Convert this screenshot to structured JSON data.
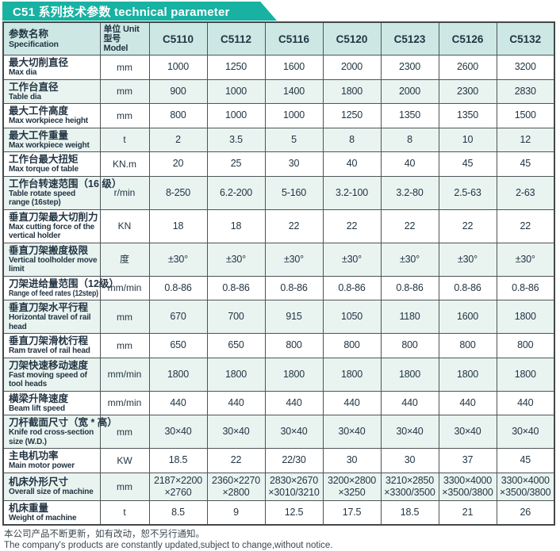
{
  "page": {
    "banner_title": "C51 系列技术参数 technical parameter",
    "footer_zh": "本公司产品不断更新，如有改动，恕不另行通知。",
    "footer_en": "The company's products are constantly updated,subject to change,without notice."
  },
  "colors": {
    "banner_teal": "#17b2a2",
    "header_row_bg": "#cde8e4",
    "stripe_row_bg": "#e9f4f1",
    "border": "#4f5456",
    "text": "#233543"
  },
  "table": {
    "header": {
      "spec_zh": "参数名称",
      "spec_en": "Specification",
      "unit_line1": "单位 Unit",
      "unit_line2": "型号 Model",
      "models": [
        "C5110",
        "C5112",
        "C5116",
        "C5120",
        "C5123",
        "C5126",
        "C5132"
      ]
    },
    "rows": [
      {
        "zh": "最大切削直径",
        "en": "Max dia",
        "unit": "mm",
        "values": [
          "1000",
          "1250",
          "1600",
          "2000",
          "2300",
          "2600",
          "3200"
        ]
      },
      {
        "zh": "工作台直径",
        "en": "Table dia",
        "unit": "mm",
        "values": [
          "900",
          "1000",
          "1400",
          "1800",
          "2000",
          "2300",
          "2830"
        ]
      },
      {
        "zh": "最大工件高度",
        "en": "Max workpiece height",
        "unit": "mm",
        "values": [
          "800",
          "1000",
          "1000",
          "1250",
          "1350",
          "1350",
          "1500"
        ]
      },
      {
        "zh": "最大工件重量",
        "en": "Max workpiece weight",
        "unit": "t",
        "values": [
          "2",
          "3.5",
          "5",
          "8",
          "8",
          "10",
          "12"
        ]
      },
      {
        "zh": "工作台最大扭矩",
        "en": "Max torque of table",
        "unit": "KN.m",
        "values": [
          "20",
          "25",
          "30",
          "40",
          "40",
          "45",
          "45"
        ]
      },
      {
        "zh": "工作台转速范围（16 级）",
        "en": "Table rotate speed range (16step)",
        "unit": "r/min",
        "values": [
          "8-250",
          "6.2-200",
          "5-160",
          "3.2-100",
          "3.2-80",
          "2.5-63",
          "2-63"
        ]
      },
      {
        "zh": "垂直刀架最大切削力",
        "en": "Max cutting force of the vertical holder",
        "unit": "KN",
        "values": [
          "18",
          "18",
          "22",
          "22",
          "22",
          "22",
          "22"
        ]
      },
      {
        "zh": "垂直刀架搬度极限",
        "en": "Vertical toolholder move limit",
        "unit": "度",
        "values": [
          "±30°",
          "±30°",
          "±30°",
          "±30°",
          "±30°",
          "±30°",
          "±30°"
        ]
      },
      {
        "zh": "刀架进给量范围（12级）",
        "en": "Range of feed rates (12step)",
        "unit": "mm/min",
        "compact": true,
        "values": [
          "0.8-86",
          "0.8-86",
          "0.8-86",
          "0.8-86",
          "0.8-86",
          "0.8-86",
          "0.8-86"
        ]
      },
      {
        "zh": "垂直刀架水平行程",
        "en": "Horizontal travel of rail head",
        "unit": "mm",
        "values": [
          "670",
          "700",
          "915",
          "1050",
          "1180",
          "1600",
          "1800"
        ]
      },
      {
        "zh": "垂直刀架滑枕行程",
        "en": "Ram travel of rail head",
        "unit": "mm",
        "values": [
          "650",
          "650",
          "800",
          "800",
          "800",
          "800",
          "800"
        ]
      },
      {
        "zh": "刀架快速移动速度",
        "en": "Fast moving speed of tool heads",
        "unit": "mm/min",
        "values": [
          "1800",
          "1800",
          "1800",
          "1800",
          "1800",
          "1800",
          "1800"
        ]
      },
      {
        "zh": "横梁升降速度",
        "en": "Beam lift speed",
        "unit": "mm/min",
        "values": [
          "440",
          "440",
          "440",
          "440",
          "440",
          "440",
          "440"
        ]
      },
      {
        "zh": "刀杆截面尺寸（宽 * 高）",
        "en": "Knife rod cross-section size (W.D.)",
        "unit": "mm",
        "values": [
          "30×40",
          "30×40",
          "30×40",
          "30×40",
          "30×40",
          "30×40",
          "30×40"
        ]
      },
      {
        "zh": "主电机功率",
        "en": "Main motor power",
        "unit": "KW",
        "values": [
          "18.5",
          "22",
          "22/30",
          "30",
          "30",
          "37",
          "45"
        ]
      },
      {
        "zh": "机床外形尺寸",
        "en": "Overall size of machine",
        "unit": "mm",
        "values": [
          "2187×2200\n×2760",
          "2360×2270\n×2800",
          "2830×2670\n×3010/3210",
          "3200×2800\n×3250",
          "3210×2850\n×3300/3500",
          "3300×4000\n×3500/3800",
          "3300×4000\n×3500/3800"
        ]
      },
      {
        "zh": "机床重量",
        "en": "Weight of machine",
        "unit": "t",
        "values": [
          "8.5",
          "9",
          "12.5",
          "17.5",
          "18.5",
          "21",
          "26"
        ]
      }
    ]
  }
}
